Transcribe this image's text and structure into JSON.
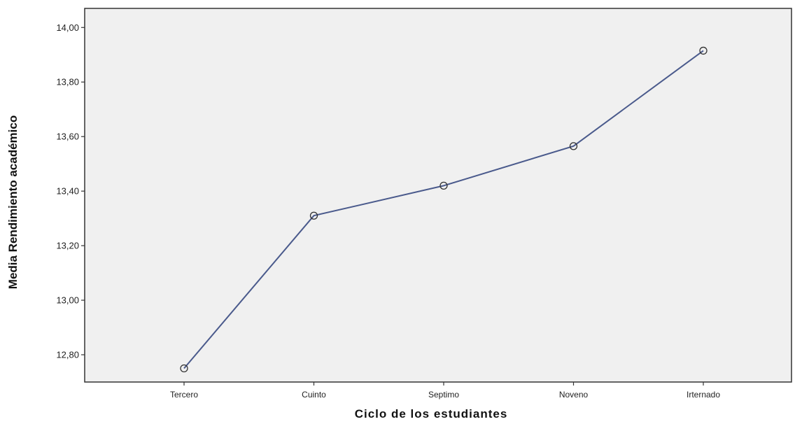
{
  "chart_data": {
    "type": "line",
    "categories": [
      "Tercero",
      "Cuinto",
      "Septimo",
      "Noveno",
      "Irternado"
    ],
    "series": [
      {
        "values": [
          12.75,
          13.31,
          13.42,
          13.565,
          13.915
        ]
      }
    ],
    "xlabel": "Ciclo de los estudiantes",
    "ylabel": "Media Rendimiento académico",
    "ylim": [
      12.7,
      14.07
    ],
    "yticks": [
      12.8,
      13.0,
      13.2,
      13.4,
      13.6,
      13.8,
      14.0
    ],
    "ytick_labels": [
      "12,80",
      "13,00",
      "13,20",
      "13,40",
      "13,60",
      "13,80",
      "14,00"
    ],
    "grid": false,
    "marker": "open-circle",
    "colors": {
      "plot_background": "#f0f0f0",
      "line": "#4a5a8c",
      "axis": "#333333"
    }
  }
}
